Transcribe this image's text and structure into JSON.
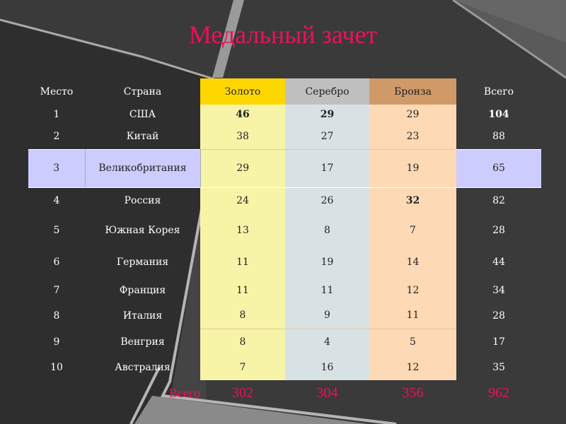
{
  "title": "Медальный зачет",
  "colors": {
    "title": "#e8125e",
    "gold": "#ffd700",
    "silver": "#bfbfbf",
    "bronze": "#cf9a68",
    "highlight": "#ccccff"
  },
  "headers": [
    "Место",
    "Страна",
    "Золото",
    "Серебро",
    "Бронза",
    "Всего"
  ],
  "rows": [
    {
      "place": "1",
      "country": "США",
      "gold": "46",
      "silver": "29",
      "bronze": "29",
      "total": "104"
    },
    {
      "place": "2",
      "country": "Китай",
      "gold": "38",
      "silver": "27",
      "bronze": "23",
      "total": "88"
    },
    {
      "place": "3",
      "country": "Великобритания",
      "gold": "29",
      "silver": "17",
      "bronze": "19",
      "total": "65"
    },
    {
      "place": "4",
      "country": "Россия",
      "gold": "24",
      "silver": "26",
      "bronze": "32",
      "total": "82"
    },
    {
      "place": "5",
      "country": "Южная Корея",
      "gold": "13",
      "silver": "8",
      "bronze": "7",
      "total": "28"
    },
    {
      "place": "6",
      "country": "Германия",
      "gold": "11",
      "silver": "19",
      "bronze": "14",
      "total": "44"
    },
    {
      "place": "7",
      "country": "Франция",
      "gold": "11",
      "silver": "11",
      "bronze": "12",
      "total": "34"
    },
    {
      "place": "8",
      "country": "Италия",
      "gold": "8",
      "silver": "9",
      "bronze": "11",
      "total": "28"
    },
    {
      "place": "9",
      "country": "Венгрия",
      "gold": "8",
      "silver": "4",
      "bronze": "5",
      "total": "17"
    },
    {
      "place": "10",
      "country": "Австралия",
      "gold": "7",
      "silver": "16",
      "bronze": "12",
      "total": "35"
    }
  ],
  "totals": {
    "label": "Всего",
    "gold": "302",
    "silver": "304",
    "bronze": "356",
    "total": "962"
  }
}
